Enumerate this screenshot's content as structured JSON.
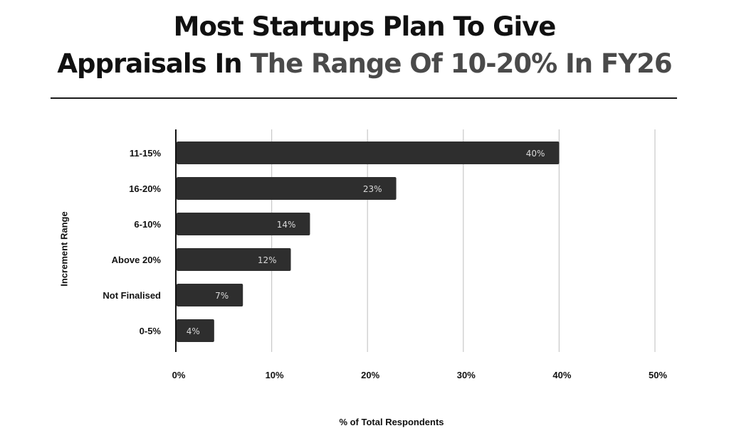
{
  "title": {
    "line1": "Most Startups Plan To Give",
    "line2_dark": "Appraisals In ",
    "line2_grey": "The Range Of 10-20% In FY26"
  },
  "chart_data": {
    "type": "bar",
    "orientation": "horizontal",
    "categories": [
      "11-15%",
      "16-20%",
      "6-10%",
      "Above 20%",
      "Not Finalised",
      "0-5%"
    ],
    "values": [
      40,
      23,
      14,
      12,
      7,
      4
    ],
    "data_labels": [
      "40%",
      "23%",
      "14%",
      "12%",
      "7%",
      "4%"
    ],
    "xlabel": "% of Total Respondents",
    "ylabel": "Increment Range",
    "xlim": [
      0,
      50
    ],
    "x_ticks": [
      "0%",
      "10%",
      "20%",
      "30%",
      "40%",
      "50%"
    ],
    "grid": true,
    "colors": {
      "bar": "#2e2e2e",
      "label": "#d9d9d9",
      "grid": "#c8c8c8"
    }
  }
}
